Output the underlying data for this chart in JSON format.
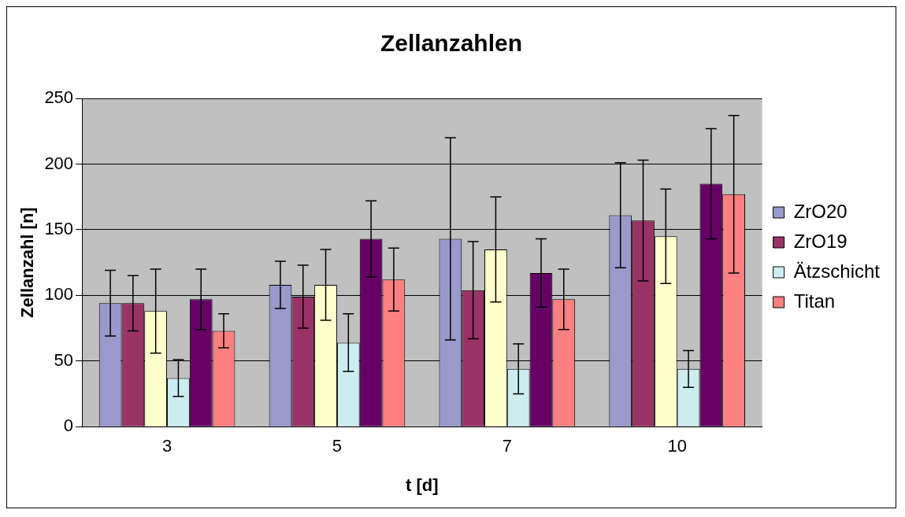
{
  "chart_data": {
    "type": "bar",
    "title": "Zellanzahlen",
    "xlabel": "t [d]",
    "ylabel": "Zellanzahl [n]",
    "categories": [
      "3",
      "5",
      "7",
      "10"
    ],
    "series": [
      {
        "name": "ZrO20",
        "color": "#9999cc",
        "values": [
          94,
          108,
          143,
          161
        ],
        "errors": [
          25,
          18,
          77,
          40
        ]
      },
      {
        "name": "ZrO19",
        "color": "#993366",
        "values": [
          94,
          99,
          104,
          157
        ],
        "errors": [
          21,
          24,
          37,
          46
        ]
      },
      {
        "color": "#ffffcc",
        "values": [
          88,
          108,
          135,
          145
        ],
        "errors": [
          32,
          27,
          40,
          36
        ]
      },
      {
        "name": "Ätzschicht",
        "color": "#ccecf0",
        "values": [
          37,
          64,
          44,
          44
        ],
        "errors": [
          14,
          22,
          19,
          14
        ]
      },
      {
        "color": "#660066",
        "values": [
          97,
          143,
          117,
          185
        ],
        "errors": [
          23,
          29,
          26,
          42
        ]
      },
      {
        "name": "Titan",
        "color": "#ff8080",
        "values": [
          73,
          112,
          97,
          177
        ],
        "errors": [
          13,
          24,
          23,
          60
        ]
      }
    ],
    "ylim": [
      0,
      250
    ],
    "yticks": [
      0,
      50,
      100,
      150,
      200,
      250
    ],
    "grid": "y",
    "legend": "right"
  }
}
